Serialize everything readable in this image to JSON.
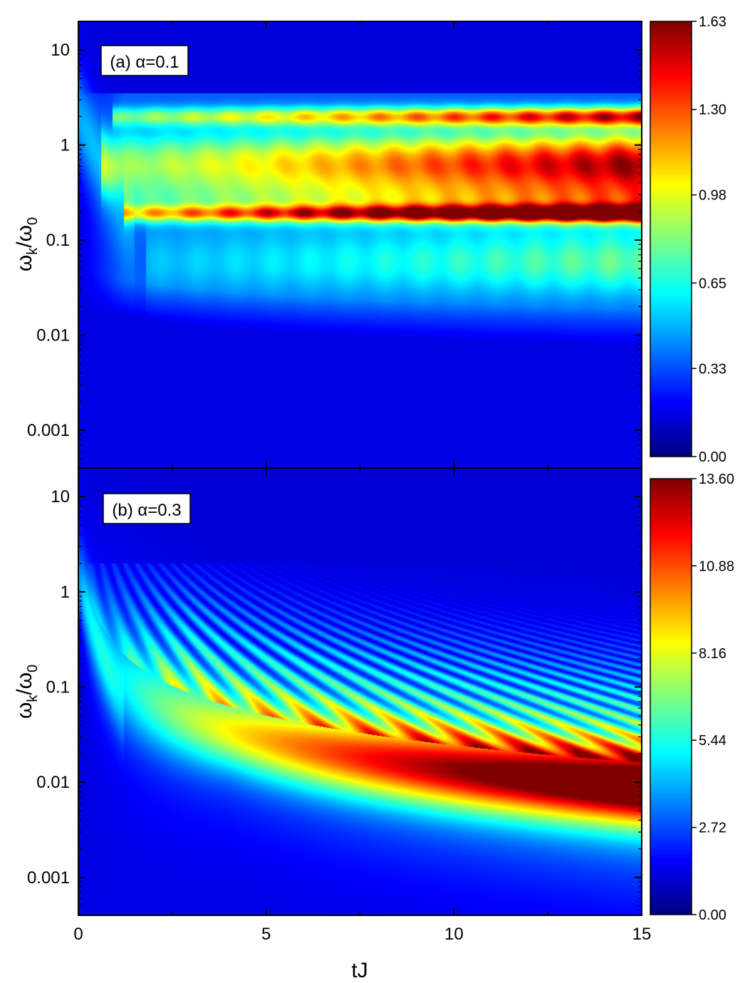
{
  "figure": {
    "xlabel": "tJ",
    "ylabel_main": "ω",
    "ylabel_sub1": "k",
    "ylabel_mid": "/ω",
    "ylabel_sub2": "0"
  },
  "chart_data": [
    {
      "type": "heatmap",
      "panel": "a",
      "annotation": "(a) α=0.1",
      "xlabel": "tJ",
      "ylabel": "ωk/ω0",
      "xlim": [
        0,
        15
      ],
      "ylim": [
        0.0004,
        20
      ],
      "yscale": "log",
      "xticks": [
        0,
        5,
        10,
        15
      ],
      "xtick_labels": [
        "0",
        "5",
        "10",
        "15"
      ],
      "yticks": [
        10,
        1,
        0.1,
        0.01,
        0.001
      ],
      "ytick_labels": [
        "10",
        "1",
        "0.1",
        "0.01",
        "0.001"
      ],
      "colorbar": {
        "min": 0,
        "max": 1.63,
        "ticks": [
          0,
          0.33,
          0.65,
          0.98,
          1.3,
          1.63
        ],
        "tick_labels": [
          "0.00",
          "0.33",
          "0.65",
          "0.98",
          "1.30",
          "1.63"
        ],
        "colormap": "jet"
      },
      "features": [
        {
          "y": 2.0,
          "t_start": 1.5,
          "t_peak": 15,
          "peak_value": 1.2,
          "width_decades": 0.07
        },
        {
          "y": 0.8,
          "t_start": 1.0,
          "t_peak": 15,
          "peak_value": 0.85,
          "width_decades": 0.2
        },
        {
          "y": 0.5,
          "t_start": 1.0,
          "t_peak": 15,
          "peak_value": 0.7,
          "width_decades": 0.18
        },
        {
          "y": 0.19,
          "t_start": 2.0,
          "t_peak": 14.5,
          "peak_value": 1.55,
          "width_decades": 0.06
        },
        {
          "y": 0.25,
          "t_start": 2.0,
          "t_peak": 15,
          "peak_value": 0.75,
          "width_decades": 0.15
        },
        {
          "y": 0.06,
          "t_start": 3.0,
          "t_peak": 15,
          "peak_value": 0.45,
          "width_decades": 0.25
        }
      ]
    },
    {
      "type": "heatmap",
      "panel": "b",
      "annotation": "(b) α=0.3",
      "xlabel": "tJ",
      "ylabel": "ωk/ω0",
      "xlim": [
        0,
        15
      ],
      "ylim": [
        0.0004,
        20
      ],
      "yscale": "log",
      "xticks": [
        0,
        5,
        10,
        15
      ],
      "xtick_labels": [
        "0",
        "5",
        "10",
        "15"
      ],
      "yticks": [
        10,
        1,
        0.1,
        0.01,
        0.001
      ],
      "ytick_labels": [
        "10",
        "1",
        "0.1",
        "0.01",
        "0.001"
      ],
      "colorbar": {
        "min": 0,
        "max": 13.6,
        "ticks": [
          0,
          2.72,
          5.44,
          8.16,
          10.88,
          13.6
        ],
        "tick_labels": [
          "0.00",
          "2.72",
          "5.44",
          "8.16",
          "10.88",
          "13.60"
        ],
        "colormap": "jet"
      },
      "features": [
        {
          "name": "main ridge",
          "y_at_t1": 0.15,
          "y_at_t15": 0.009,
          "peak_value": 13.3,
          "width_decades": 0.28
        },
        {
          "name": "oscillation fringes",
          "y_min": 0.012,
          "y_max": 2.0,
          "fringe_frequency": 1.0,
          "max_fringe_value": 4.5
        }
      ]
    }
  ]
}
